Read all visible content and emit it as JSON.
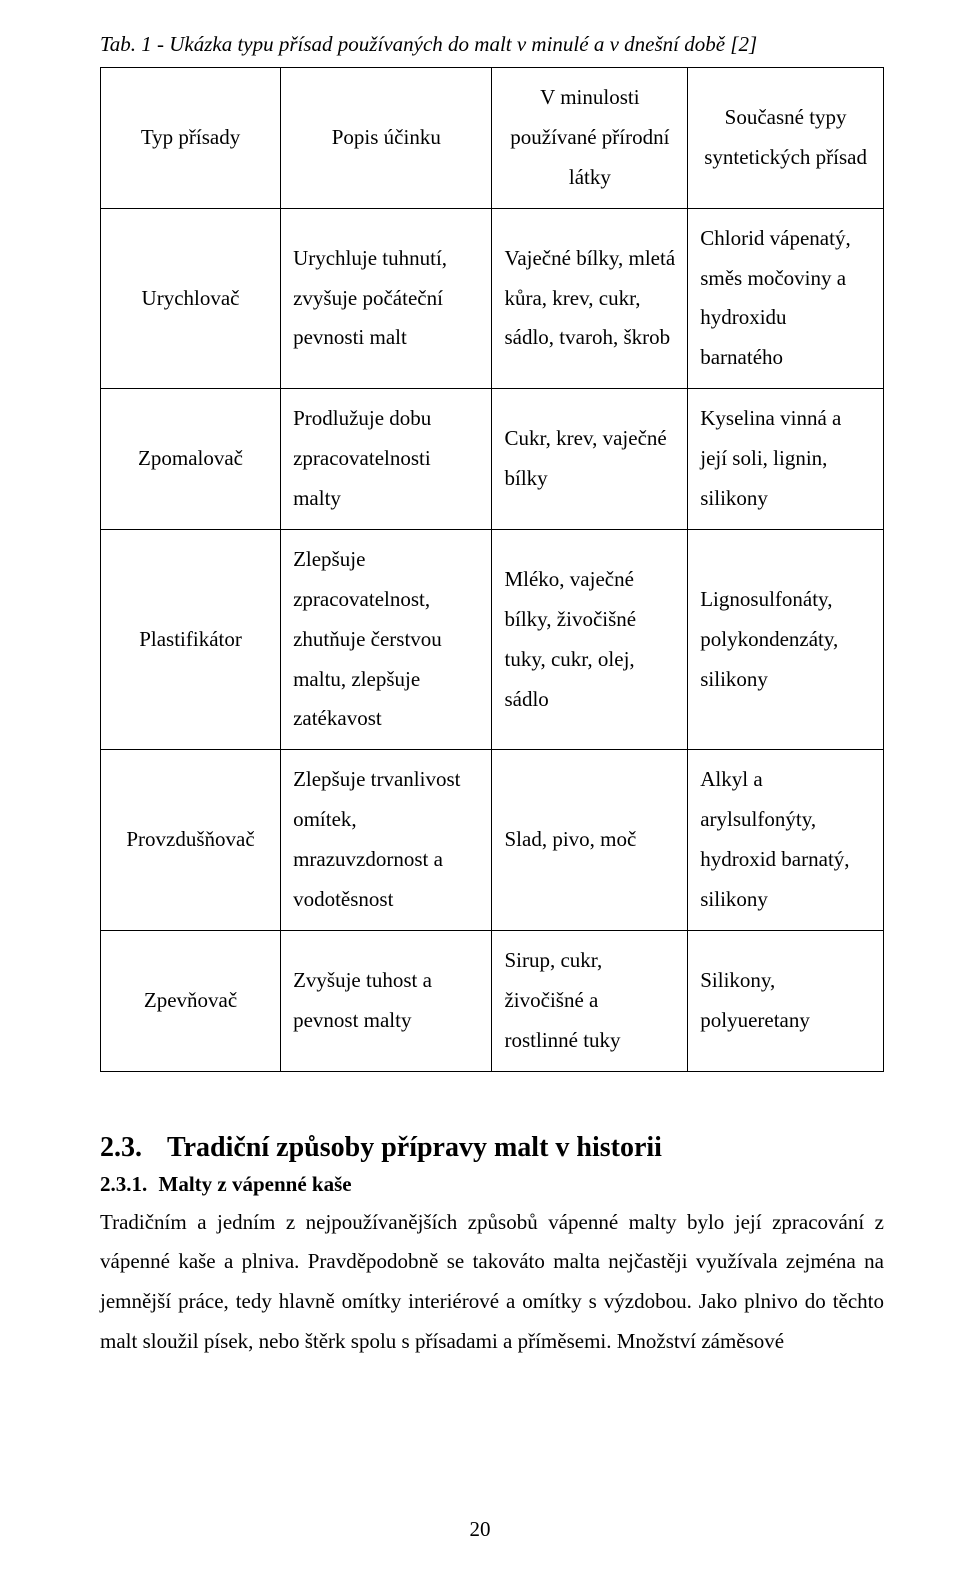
{
  "caption": "Tab. 1 - Ukázka typu přísad používaných do malt v minulé a v dnešní době [2]",
  "table": {
    "header": {
      "col1": "Typ přísady",
      "col2": "Popis účinku",
      "col3": "V minulosti používané přírodní látky",
      "col4": "Současné typy syntetických přísad"
    },
    "rows": [
      {
        "type": "Urychlovač",
        "desc": "Urychluje tuhnutí, zvyšuje počáteční pevnosti malt",
        "past": "Vaječné bílky, mletá kůra, krev, cukr, sádlo, tvaroh, škrob",
        "curr": "Chlorid vápenatý, směs močoviny a hydroxidu barnatého"
      },
      {
        "type": "Zpomalovač",
        "desc": "Prodlužuje dobu zpracovatelnosti malty",
        "past": "Cukr, krev, vaječné bílky",
        "curr": "Kyselina vinná a její soli, lignin, silikony"
      },
      {
        "type": "Plastifikátor",
        "desc": "Zlepšuje zpracovatelnost, zhutňuje čerstvou maltu, zlepšuje zatékavost",
        "past": "Mléko, vaječné bílky, živočišné tuky, cukr, olej, sádlo",
        "curr": "Lignosulfonáty, polykondenzáty, silikony"
      },
      {
        "type": "Provzdušňovač",
        "desc": "Zlepšuje trvanlivost omítek, mrazuvzdornost a vodotěsnost",
        "past": "Slad, pivo, moč",
        "curr": "Alkyl a arylsulfonýty, hydroxid barnatý, silikony"
      },
      {
        "type": "Zpevňovač",
        "desc": "Zvyšuje tuhost a pevnost malty",
        "past": "Sirup, cukr, živočišné a rostlinné tuky",
        "curr": "Silikony, polyueretany"
      }
    ]
  },
  "section": {
    "num": "2.3.",
    "title": "Tradiční způsoby přípravy malt v historii"
  },
  "subsection": {
    "num": "2.3.1.",
    "title": "Malty z vápenné kaše"
  },
  "paragraph": "Tradičním a jedním z nejpoužívanějších způsobů vápenné malty bylo její zpracování z vápenné kaše a plniva. Pravděpodobně se takováto malta nejčastěji využívala zejména na jemnější práce, tedy hlavně omítky interiérové a omítky s výzdobou. Jako plnivo do těchto malt sloužil písek, nebo štěrk spolu s přísadami a příměsemi. Množství záměsové",
  "pageNumber": "20",
  "style": {
    "background": "#ffffff",
    "textColor": "#000000",
    "borderColor": "#000000",
    "fontFamily": "Times New Roman",
    "captionFontStyle": "italic",
    "captionFontSize": 21,
    "tableFontSize": 21,
    "tableLineHeight": 1.9,
    "sectionFontSize": 28,
    "subsectionFontSize": 21,
    "bodyFontSize": 21,
    "bodyLineHeight": 1.9,
    "pageNumberFontSize": 21,
    "colWidths": [
      "23%",
      "27%",
      "25%",
      "25%"
    ]
  }
}
